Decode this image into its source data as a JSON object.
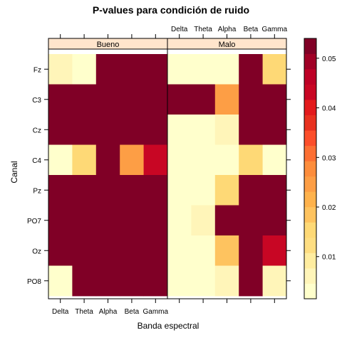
{
  "chart_data": {
    "type": "heatmap",
    "title": "P-values para condición de ruido",
    "xlabel": "Banda espectral",
    "ylabel": "Canal",
    "bands": [
      "Delta",
      "Theta",
      "Alpha",
      "Beta",
      "Gamma"
    ],
    "channels": [
      "Fz",
      "C3",
      "Cz",
      "C4",
      "Pz",
      "PO7",
      "Oz",
      "PO8"
    ],
    "panels": [
      {
        "name": "Bueno",
        "values": [
          [
            0.007,
            0.003,
            0.055,
            0.055,
            0.055
          ],
          [
            0.055,
            0.055,
            0.055,
            0.055,
            0.055
          ],
          [
            0.055,
            0.055,
            0.055,
            0.055,
            0.055
          ],
          [
            0.003,
            0.015,
            0.055,
            0.024,
            0.042
          ],
          [
            0.055,
            0.055,
            0.055,
            0.055,
            0.055
          ],
          [
            0.055,
            0.055,
            0.055,
            0.055,
            0.055
          ],
          [
            0.055,
            0.055,
            0.055,
            0.055,
            0.055
          ],
          [
            0.003,
            0.055,
            0.055,
            0.055,
            0.055
          ]
        ]
      },
      {
        "name": "Malo",
        "values": [
          [
            0.003,
            0.003,
            0.003,
            0.055,
            0.015
          ],
          [
            0.055,
            0.055,
            0.024,
            0.055,
            0.055
          ],
          [
            0.003,
            0.003,
            0.007,
            0.055,
            0.055
          ],
          [
            0.003,
            0.003,
            0.003,
            0.015,
            0.003
          ],
          [
            0.003,
            0.003,
            0.015,
            0.055,
            0.055
          ],
          [
            0.003,
            0.007,
            0.055,
            0.055,
            0.055
          ],
          [
            0.003,
            0.003,
            0.018,
            0.055,
            0.042
          ],
          [
            0.003,
            0.003,
            0.007,
            0.055,
            0.007
          ]
        ]
      }
    ],
    "colorbar": {
      "min": 0.0015,
      "max": 0.054,
      "ticks": [
        0.01,
        0.02,
        0.03,
        0.04,
        0.05
      ],
      "tick_labels": [
        "0.01",
        "0.02",
        "0.03",
        "0.04",
        "0.05"
      ],
      "colors": [
        "#FFFFCC",
        "#FFF5B9",
        "#FFEDA0",
        "#FEDE82",
        "#FED976",
        "#FEC35F",
        "#FEB24C",
        "#FD9E45",
        "#FD8D3C",
        "#FC6F33",
        "#FC4E2A",
        "#E8311F",
        "#E31A1C",
        "#C80624",
        "#BD0026",
        "#A00026",
        "#800026"
      ]
    },
    "strip_color": "#FFE5CC",
    "grid": false
  }
}
